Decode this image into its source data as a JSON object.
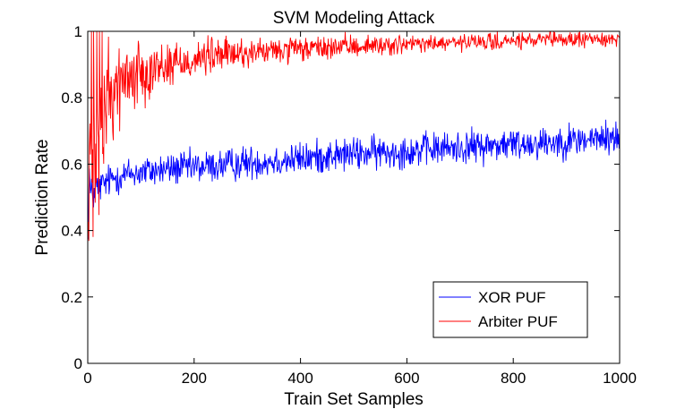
{
  "chart_data": {
    "type": "line",
    "title": "SVM Modeling Attack",
    "xlabel": "Train Set Samples",
    "ylabel": "Prediction Rate",
    "xlim": [
      0,
      1000
    ],
    "ylim": [
      0,
      1
    ],
    "xticks": [
      0,
      200,
      400,
      600,
      800,
      1000
    ],
    "yticks": [
      0,
      0.2,
      0.4,
      0.6,
      0.8,
      1
    ],
    "ytick_labels": [
      "0",
      "0.2",
      "0.4",
      "0.6",
      "0.8",
      "1"
    ],
    "grid": false,
    "legend_position": "bottom-right",
    "series": [
      {
        "name": "XOR PUF",
        "color": "#0000ff",
        "noise": 0.025,
        "points": [
          [
            1,
            0.42
          ],
          [
            3,
            0.58
          ],
          [
            5,
            0.5
          ],
          [
            8,
            0.52
          ],
          [
            10,
            0.5
          ],
          [
            15,
            0.53
          ],
          [
            20,
            0.53
          ],
          [
            30,
            0.54
          ],
          [
            50,
            0.56
          ],
          [
            75,
            0.57
          ],
          [
            100,
            0.575
          ],
          [
            150,
            0.585
          ],
          [
            200,
            0.59
          ],
          [
            250,
            0.595
          ],
          [
            300,
            0.605
          ],
          [
            350,
            0.61
          ],
          [
            400,
            0.615
          ],
          [
            450,
            0.625
          ],
          [
            500,
            0.63
          ],
          [
            550,
            0.635
          ],
          [
            600,
            0.64
          ],
          [
            650,
            0.645
          ],
          [
            700,
            0.65
          ],
          [
            750,
            0.655
          ],
          [
            800,
            0.66
          ],
          [
            850,
            0.665
          ],
          [
            900,
            0.67
          ],
          [
            950,
            0.675
          ],
          [
            1000,
            0.68
          ]
        ]
      },
      {
        "name": "Arbiter PUF",
        "color": "#ff0000",
        "noise_points": [
          [
            1,
            0.3
          ],
          [
            10,
            0.25
          ],
          [
            20,
            0.15
          ],
          [
            30,
            0.1
          ],
          [
            50,
            0.07
          ],
          [
            100,
            0.045
          ],
          [
            150,
            0.035
          ],
          [
            200,
            0.03
          ],
          [
            300,
            0.022
          ],
          [
            400,
            0.018
          ],
          [
            600,
            0.014
          ],
          [
            800,
            0.012
          ],
          [
            1000,
            0.011
          ]
        ],
        "points": [
          [
            1,
            0.5
          ],
          [
            3,
            0.55
          ],
          [
            5,
            0.5
          ],
          [
            8,
            0.6
          ],
          [
            10,
            0.62
          ],
          [
            15,
            0.68
          ],
          [
            20,
            0.72
          ],
          [
            30,
            0.76
          ],
          [
            40,
            0.8
          ],
          [
            50,
            0.83
          ],
          [
            75,
            0.86
          ],
          [
            100,
            0.88
          ],
          [
            150,
            0.9
          ],
          [
            200,
            0.915
          ],
          [
            250,
            0.93
          ],
          [
            300,
            0.935
          ],
          [
            400,
            0.945
          ],
          [
            500,
            0.955
          ],
          [
            600,
            0.96
          ],
          [
            700,
            0.965
          ],
          [
            800,
            0.97
          ],
          [
            900,
            0.975
          ],
          [
            1000,
            0.978
          ]
        ]
      }
    ]
  }
}
